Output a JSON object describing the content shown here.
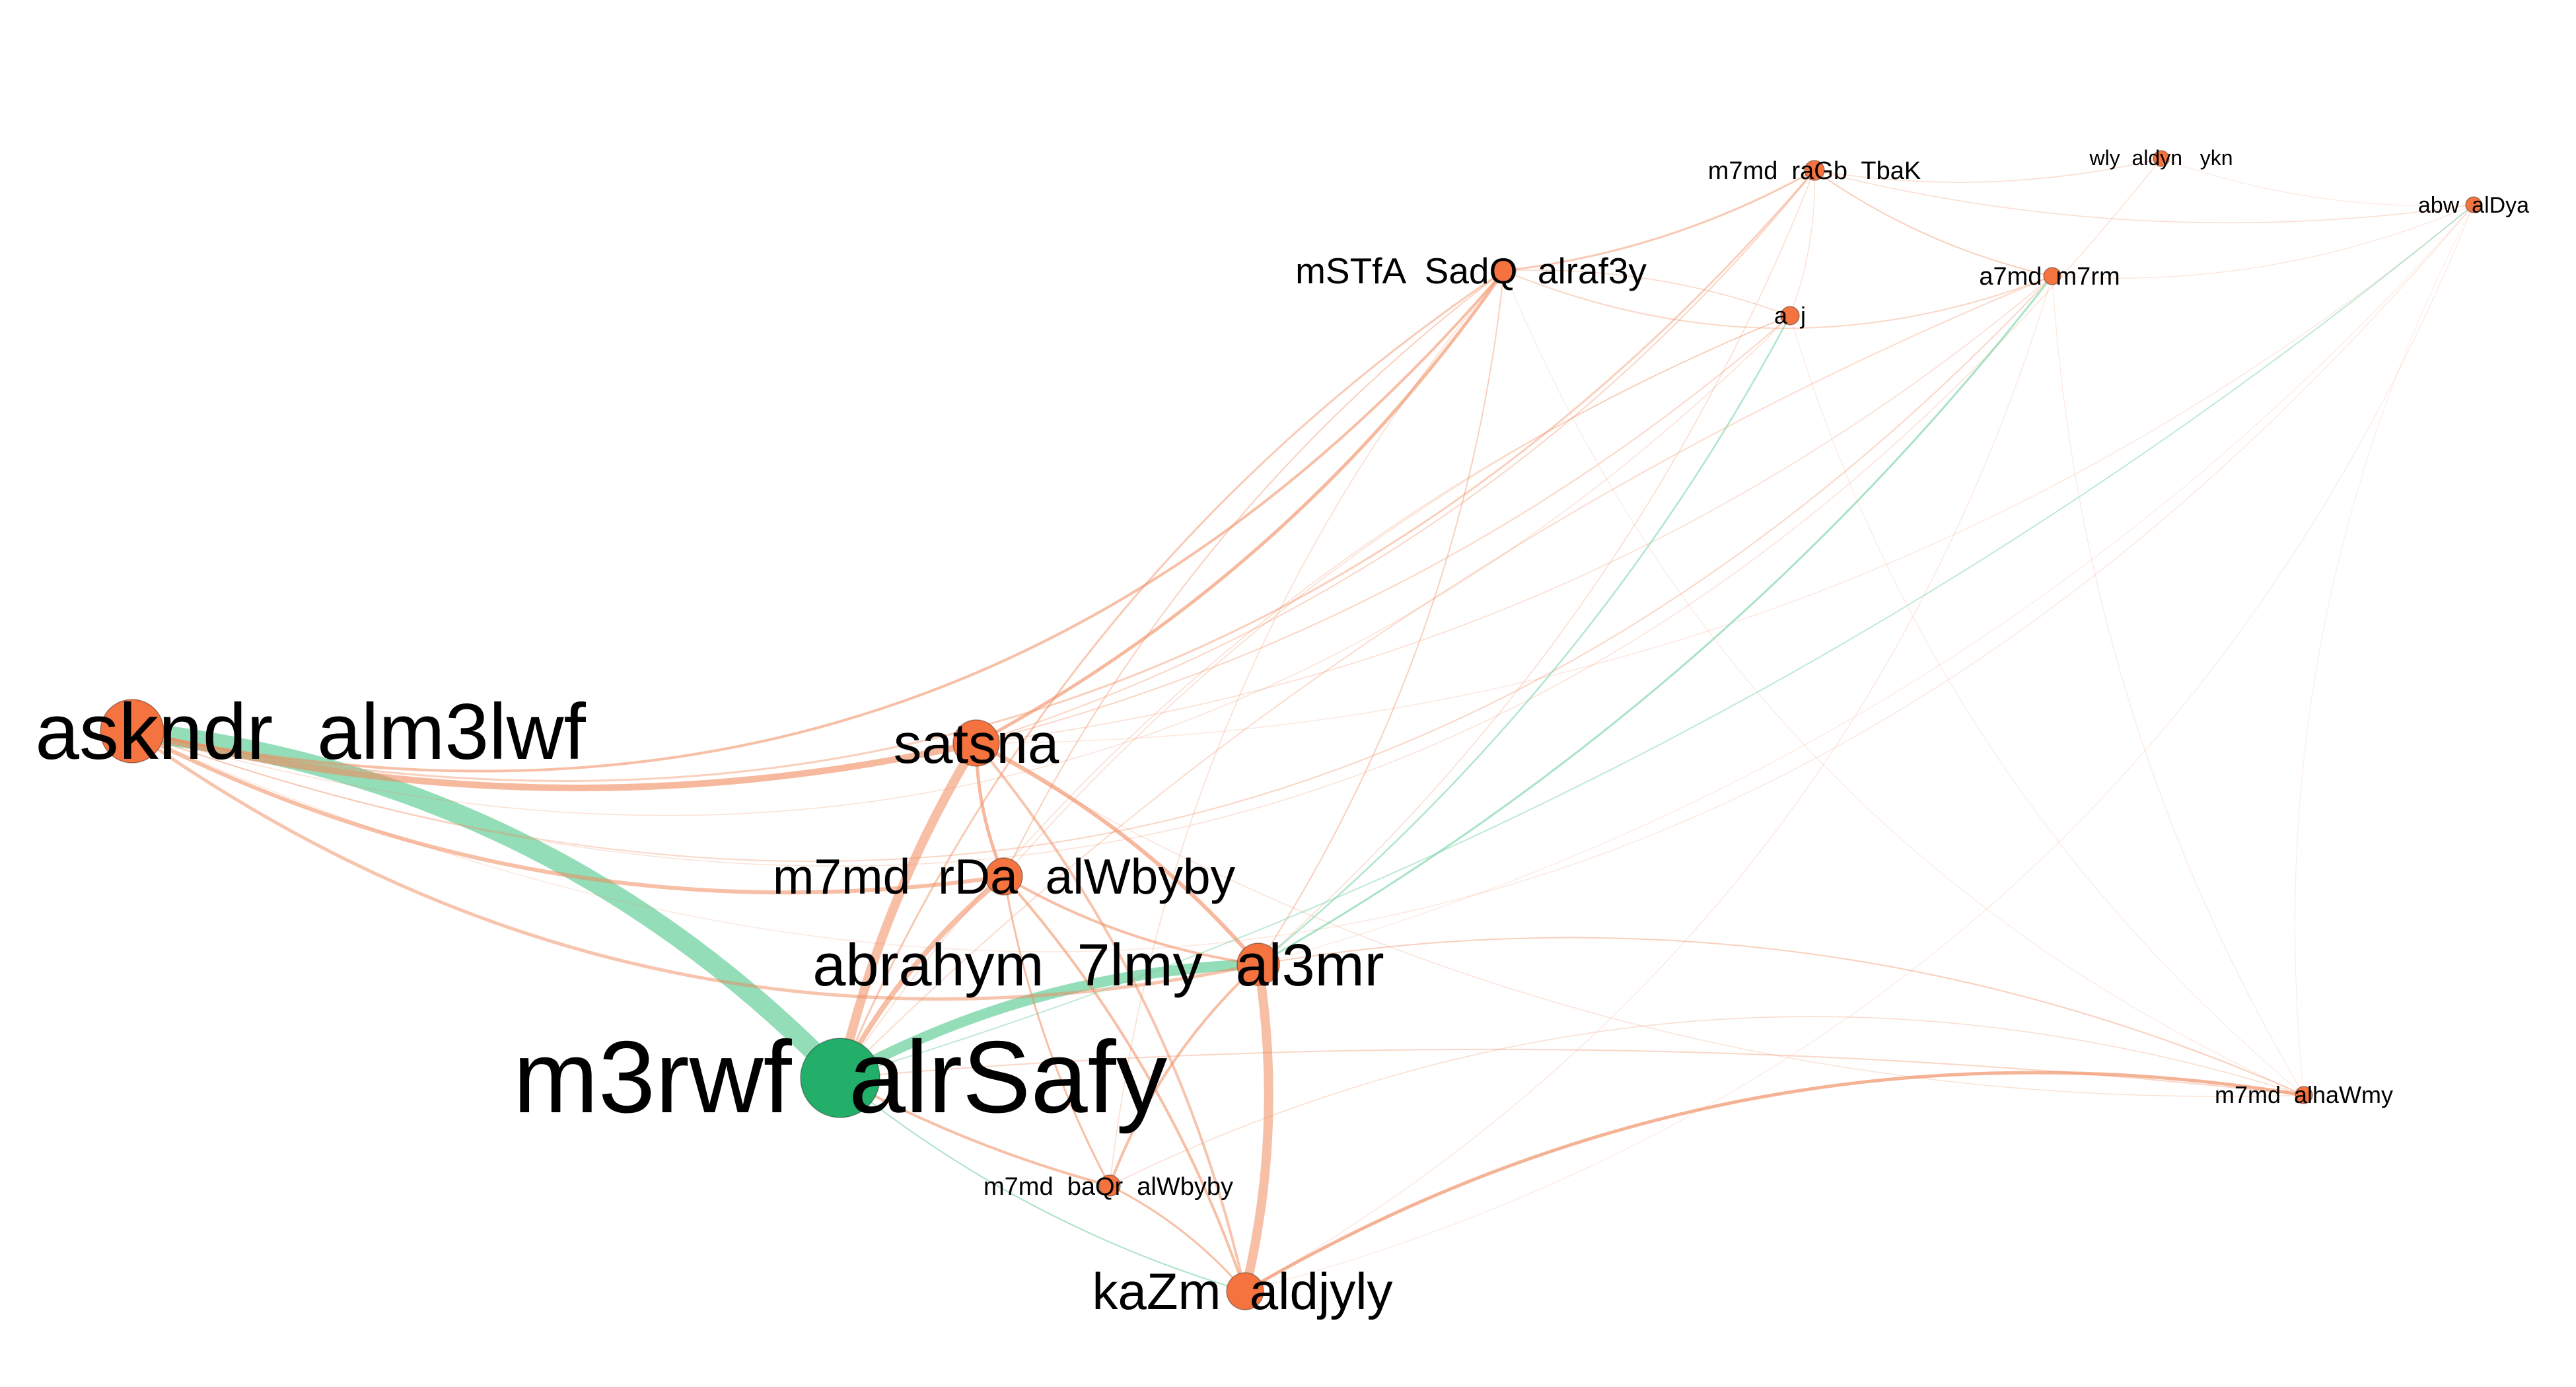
{
  "colors": {
    "orange_node": "#f4733f",
    "green_node": "#23ae6a",
    "orange_edge": "#f08a5d",
    "green_edge": "#6fd1a0"
  },
  "nodes": [
    {
      "id": "m3rwf_alrSafy",
      "label": "m3rwf  alrSafy",
      "color": "green"
    },
    {
      "id": "askndr",
      "label": "askndr  alm3lwf",
      "color": "orange"
    },
    {
      "id": "satsna",
      "label": "satsna",
      "color": "orange"
    },
    {
      "id": "m7md_rDa",
      "label": "m7md  rDa  alWbyby",
      "color": "orange"
    },
    {
      "id": "abrahym",
      "label": "abrahym  7lmy  al3mr",
      "color": "orange"
    },
    {
      "id": "kaZm",
      "label": "kaZm  aldjyly",
      "color": "orange"
    },
    {
      "id": "m7md_baQr",
      "label": "m7md  baQr  alWbyby",
      "color": "orange"
    },
    {
      "id": "mSTfA",
      "label": "mSTfA  SadQ  alraf3y",
      "color": "orange"
    },
    {
      "id": "m7md_raGb",
      "label": "m7md  raGb  TbaK",
      "color": "orange"
    },
    {
      "id": "aj",
      "label": "a  j",
      "color": "orange"
    },
    {
      "id": "a7md",
      "label": "a7md  m7rm",
      "color": "orange"
    },
    {
      "id": "wly",
      "label": "wly  aldyn   ykn",
      "color": "orange"
    },
    {
      "id": "abw",
      "label": "abw  alDya",
      "color": "orange"
    },
    {
      "id": "m7md_alhaWmy",
      "label": "m7md  alhaWmy",
      "color": "orange"
    }
  ]
}
